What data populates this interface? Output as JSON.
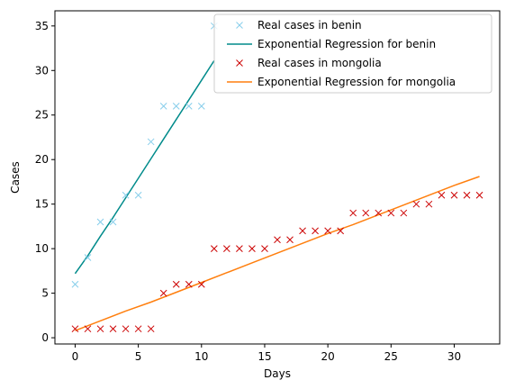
{
  "chart_data": {
    "type": "scatter",
    "title": "",
    "xlabel": "Days",
    "ylabel": "Cases",
    "xlim": [
      -1.6,
      33.6
    ],
    "ylim": [
      -0.7,
      36.7
    ],
    "xticks": [
      0,
      5,
      10,
      15,
      20,
      25,
      30
    ],
    "yticks": [
      0,
      5,
      10,
      15,
      20,
      25,
      30,
      35
    ],
    "grid": false,
    "legend_position": "top-right",
    "series": [
      {
        "name": "Real cases in benin",
        "kind": "markers",
        "marker": "x",
        "color": "#87ceeb",
        "x": [
          0,
          1,
          2,
          3,
          4,
          5,
          6,
          7,
          8,
          9,
          10,
          11
        ],
        "y": [
          6,
          9,
          13,
          13,
          16,
          16,
          22,
          26,
          26,
          26,
          26,
          35
        ]
      },
      {
        "name": "Exponential Regression for benin",
        "kind": "line",
        "color": "#008b8b",
        "x": [
          0,
          1,
          2,
          3,
          4,
          5,
          6,
          7,
          8,
          9,
          10,
          11
        ],
        "y": [
          7.2,
          9.2,
          11.4,
          13.5,
          15.7,
          17.9,
          20.1,
          22.3,
          24.5,
          26.7,
          28.9,
          31.1
        ]
      },
      {
        "name": "Real cases in mongolia",
        "kind": "markers",
        "marker": "x",
        "color": "#cc0000",
        "x": [
          0,
          1,
          2,
          3,
          4,
          5,
          6,
          7,
          8,
          9,
          10,
          11,
          12,
          13,
          14,
          15,
          16,
          17,
          18,
          19,
          20,
          21,
          22,
          23,
          24,
          25,
          26,
          27,
          28,
          29,
          30,
          31,
          32
        ],
        "y": [
          1,
          1,
          1,
          1,
          1,
          1,
          1,
          5,
          6,
          6,
          6,
          10,
          10,
          10,
          10,
          10,
          11,
          11,
          12,
          12,
          12,
          12,
          14,
          14,
          14,
          14,
          14,
          15,
          15,
          16,
          16,
          16,
          16
        ]
      },
      {
        "name": "Exponential Regression for mongolia",
        "kind": "line",
        "color": "#ff7f0e",
        "x": [
          0,
          2,
          4,
          6,
          8,
          10,
          12,
          14,
          16,
          18,
          20,
          22,
          24,
          26,
          28,
          30,
          32
        ],
        "y": [
          0.8,
          1.9,
          3.0,
          4.0,
          5.1,
          6.2,
          7.3,
          8.4,
          9.5,
          10.6,
          11.7,
          12.7,
          13.8,
          14.9,
          16.0,
          17.1,
          18.1
        ]
      }
    ]
  }
}
